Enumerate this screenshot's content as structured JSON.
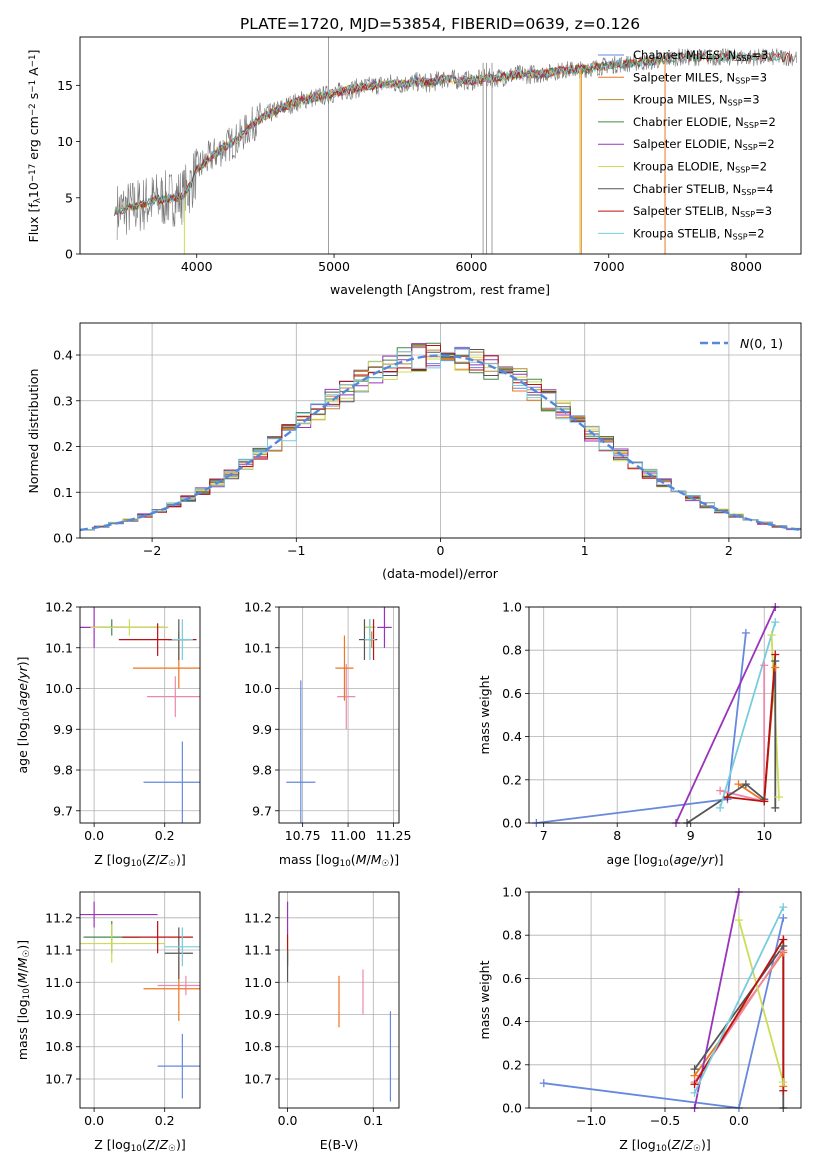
{
  "figure_title": "PLATE=1720, MJD=53854, FIBERID=0639, z=0.126",
  "colors": {
    "Chabrier MILES": "#6688dd",
    "Salpeter MILES": "#ee7722",
    "Kroupa MILES": "#bb8833",
    "Chabrier ELODIE": "#448844",
    "Salpeter ELODIE": "#9933bb",
    "Kroupa ELODIE": "#ccdd55",
    "Chabrier STELIB": "#555555",
    "Salpeter STELIB": "#bb1111",
    "Kroupa STELIB": "#77ccdd",
    "Pink": "#ee88aa",
    "gaussian": "#5588dd",
    "spectrum_gray": "#777777"
  },
  "chart_data": [
    {
      "id": "spectrum",
      "type": "line",
      "title": "PLATE=1720, MJD=53854, FIBERID=0639, z=0.126",
      "xlabel": "wavelength [Angstrom, rest frame]",
      "ylabel": "Flux [f_λ 10^-17 erg cm^-2 s^-1 A^-1]",
      "xlim": [
        3150,
        8400
      ],
      "ylim": [
        0,
        19.3
      ],
      "xticks": [
        4000,
        5000,
        6000,
        7000,
        8000
      ],
      "yticks": [
        0,
        5,
        10,
        15
      ],
      "legend_position": "top-right",
      "legend": [
        {
          "label": "Chabrier MILES, N",
          "sub": "SSP",
          "suffix": "=3"
        },
        {
          "label": "Salpeter MILES, N",
          "sub": "SSP",
          "suffix": "=3"
        },
        {
          "label": "Kroupa MILES, N",
          "sub": "SSP",
          "suffix": "=3"
        },
        {
          "label": "Chabrier ELODIE, N",
          "sub": "SSP",
          "suffix": "=2"
        },
        {
          "label": "Salpeter ELODIE, N",
          "sub": "SSP",
          "suffix": "=2"
        },
        {
          "label": "Kroupa ELODIE, N",
          "sub": "SSP",
          "suffix": "=2"
        },
        {
          "label": "Chabrier STELIB, N",
          "sub": "SSP",
          "suffix": "=4"
        },
        {
          "label": "Salpeter STELIB, N",
          "sub": "SSP",
          "suffix": "=3"
        },
        {
          "label": "Kroupa STELIB, N",
          "sub": "SSP",
          "suffix": "=2"
        }
      ],
      "continuum": [
        [
          3400,
          3.8
        ],
        [
          3550,
          4.2
        ],
        [
          3700,
          4.8
        ],
        [
          3800,
          4.9
        ],
        [
          3900,
          5.2
        ],
        [
          3950,
          6.0
        ],
        [
          4000,
          7.5
        ],
        [
          4100,
          8.6
        ],
        [
          4200,
          9.5
        ],
        [
          4300,
          10.2
        ],
        [
          4400,
          11.5
        ],
        [
          4500,
          12.3
        ],
        [
          4600,
          12.9
        ],
        [
          4700,
          13.4
        ],
        [
          4800,
          13.8
        ],
        [
          4900,
          14.0
        ],
        [
          5000,
          14.3
        ],
        [
          5100,
          14.6
        ],
        [
          5200,
          14.8
        ],
        [
          5300,
          15.0
        ],
        [
          5400,
          15.2
        ],
        [
          5500,
          15.1
        ],
        [
          5600,
          15.3
        ],
        [
          5700,
          15.2
        ],
        [
          5800,
          15.6
        ],
        [
          5900,
          15.5
        ],
        [
          6000,
          15.4
        ],
        [
          6100,
          15.6
        ],
        [
          6200,
          15.7
        ],
        [
          6300,
          15.9
        ],
        [
          6400,
          16.0
        ],
        [
          6500,
          16.0
        ],
        [
          6600,
          16.2
        ],
        [
          6700,
          16.4
        ],
        [
          6800,
          16.4
        ],
        [
          6900,
          16.6
        ],
        [
          7000,
          16.8
        ],
        [
          7100,
          16.9
        ],
        [
          7200,
          17.0
        ],
        [
          7300,
          17.1
        ],
        [
          7400,
          17.3
        ],
        [
          7500,
          17.5
        ]
      ],
      "model_end": {
        "Chabrier MILES": 7350,
        "Salpeter MILES": 7420,
        "Kroupa MILES": 7420,
        "Salpeter ELODIE": 6800,
        "Kroupa ELODIE": 6800,
        "Chabrier STELIB": 7450,
        "Kroupa STELIB": 8250
      },
      "model_start": {
        "Salpeter ELODIE": 4100,
        "Kroupa ELODIE": 4100
      }
    },
    {
      "id": "residuals",
      "type": "histogram",
      "xlabel": "(data-model)/error",
      "ylabel": "Normed distribution",
      "xlim": [
        -2.5,
        2.5
      ],
      "ylim": [
        0,
        0.47
      ],
      "xticks": [
        -2,
        -1,
        0,
        1,
        2
      ],
      "yticks": [
        0.0,
        0.1,
        0.2,
        0.3,
        0.4
      ],
      "legend_position": "top-right",
      "legend_label": "N(0,1)",
      "bin_width": 0.1
    },
    {
      "id": "age-vs-Z",
      "type": "errorbar",
      "xlabel": "Z [log10(Z/Z☉)]",
      "ylabel": "age [log10(age/yr)]",
      "xlim": [
        -0.04,
        0.3
      ],
      "ylim": [
        9.67,
        10.2
      ],
      "xticks": [
        0.0,
        0.2
      ],
      "yticks": [
        9.7,
        9.8,
        9.9,
        10.0,
        10.1,
        10.2
      ],
      "points": [
        {
          "c": "Chabrier MILES",
          "x": 0.25,
          "y": 9.77,
          "xe": 0.11,
          "ye": 0.1
        },
        {
          "c": "Pink",
          "x": 0.23,
          "y": 9.98,
          "xe": 0.08,
          "ye": 0.05
        },
        {
          "c": "Salpeter MILES",
          "x": 0.24,
          "y": 10.05,
          "xe": 0.13,
          "ye": 0.05
        },
        {
          "c": "Kroupa MILES",
          "x": 0.24,
          "y": 10.12,
          "xe": 0.02,
          "ye": 0.02
        },
        {
          "c": "Chabrier ELODIE",
          "x": 0.05,
          "y": 10.15,
          "xe": 0.04,
          "ye": 0.02
        },
        {
          "c": "Salpeter ELODIE",
          "x": 0.0,
          "y": 10.15,
          "xe": 0.2,
          "ye": 0.05
        },
        {
          "c": "Kroupa ELODIE",
          "x": 0.1,
          "y": 10.15,
          "xe": 0.11,
          "ye": 0.02
        },
        {
          "c": "Chabrier STELIB",
          "x": 0.24,
          "y": 10.12,
          "xe": 0.03,
          "ye": 0.05
        },
        {
          "c": "Salpeter STELIB",
          "x": 0.18,
          "y": 10.12,
          "xe": 0.11,
          "ye": 0.04
        },
        {
          "c": "Kroupa STELIB",
          "x": 0.25,
          "y": 10.12,
          "xe": 0.03,
          "ye": 0.05
        }
      ]
    },
    {
      "id": "age-vs-mass",
      "type": "errorbar",
      "xlabel": "mass [log10(M/M☉)]",
      "xlim": [
        10.62,
        11.28
      ],
      "ylim": [
        9.67,
        10.2
      ],
      "xticks": [
        10.75,
        11.0,
        11.25
      ],
      "yticks": [
        9.7,
        9.8,
        9.9,
        10.0,
        10.1,
        10.2
      ],
      "points": [
        {
          "c": "Chabrier MILES",
          "x": 10.74,
          "y": 9.77,
          "xe": 0.08,
          "ye": 0.25
        },
        {
          "c": "Pink",
          "x": 10.99,
          "y": 9.98,
          "xe": 0.05,
          "ye": 0.08
        },
        {
          "c": "Salpeter MILES",
          "x": 10.98,
          "y": 10.05,
          "xe": 0.05,
          "ye": 0.08
        },
        {
          "c": "Kroupa MILES",
          "x": 11.13,
          "y": 10.12,
          "xe": 0.02,
          "ye": 0.02
        },
        {
          "c": "Chabrier ELODIE",
          "x": 11.12,
          "y": 10.15,
          "xe": 0.03,
          "ye": 0.02
        },
        {
          "c": "Salpeter ELODIE",
          "x": 11.2,
          "y": 10.15,
          "xe": 0.04,
          "ye": 0.05
        },
        {
          "c": "Kroupa ELODIE",
          "x": 11.12,
          "y": 10.15,
          "xe": 0.03,
          "ye": 0.02
        },
        {
          "c": "Chabrier STELIB",
          "x": 11.09,
          "y": 10.12,
          "xe": 0.03,
          "ye": 0.05
        },
        {
          "c": "Salpeter STELIB",
          "x": 11.14,
          "y": 10.12,
          "xe": 0.02,
          "ye": 0.05
        },
        {
          "c": "Kroupa STELIB",
          "x": 11.12,
          "y": 10.12,
          "xe": 0.03,
          "ye": 0.05
        }
      ]
    },
    {
      "id": "weight-vs-age",
      "type": "line",
      "xlabel": "age [log10(age/yr)]",
      "ylabel": "mass weight",
      "xlim": [
        6.8,
        10.5
      ],
      "ylim": [
        0,
        1
      ],
      "xticks": [
        7,
        8,
        9,
        10
      ],
      "yticks": [
        0.0,
        0.2,
        0.4,
        0.6,
        0.8,
        1.0
      ],
      "series": [
        {
          "c": "Chabrier MILES",
          "pts": [
            [
              6.9,
              0.0
            ],
            [
              9.5,
              0.11
            ],
            [
              9.75,
              0.88
            ]
          ]
        },
        {
          "c": "Salpeter MILES",
          "pts": [
            [
              9.65,
              0.18
            ],
            [
              10.0,
              0.1
            ],
            [
              10.15,
              0.72
            ]
          ]
        },
        {
          "c": "Pink",
          "pts": [
            [
              9.4,
              0.15
            ],
            [
              10.0,
              0.1
            ],
            [
              10.0,
              0.73
            ]
          ]
        },
        {
          "c": "Salpeter ELODIE",
          "pts": [
            [
              8.8,
              0.0
            ],
            [
              10.15,
              1.0
            ]
          ]
        },
        {
          "c": "Kroupa ELODIE",
          "pts": [
            [
              10.1,
              0.87
            ],
            [
              10.2,
              0.12
            ]
          ]
        },
        {
          "c": "Chabrier STELIB",
          "pts": [
            [
              8.95,
              0.0
            ],
            [
              9.75,
              0.18
            ],
            [
              10.0,
              0.11
            ],
            [
              10.15,
              0.75
            ],
            [
              10.15,
              0.07
            ]
          ]
        },
        {
          "c": "Salpeter STELIB",
          "pts": [
            [
              9.5,
              0.12
            ],
            [
              10.0,
              0.1
            ],
            [
              10.15,
              0.78
            ]
          ]
        },
        {
          "c": "Kroupa STELIB",
          "pts": [
            [
              9.4,
              0.07
            ],
            [
              10.15,
              0.93
            ]
          ]
        }
      ]
    },
    {
      "id": "mass-vs-Z",
      "type": "errorbar",
      "xlabel": "Z [log10(Z/Z☉)]",
      "ylabel": "mass [log10(M/M☉)]",
      "xlim": [
        -0.04,
        0.3
      ],
      "ylim": [
        10.61,
        11.28
      ],
      "xticks": [
        0.0,
        0.2
      ],
      "yticks": [
        10.7,
        10.8,
        10.9,
        11.0,
        11.1,
        11.2
      ],
      "points": [
        {
          "c": "Chabrier MILES",
          "x": 0.25,
          "y": 10.74,
          "xe": 0.07,
          "ye": 0.1
        },
        {
          "c": "Pink",
          "x": 0.26,
          "y": 10.99,
          "xe": 0.08,
          "ye": 0.03
        },
        {
          "c": "Salpeter MILES",
          "x": 0.24,
          "y": 10.98,
          "xe": 0.1,
          "ye": 0.1
        },
        {
          "c": "Chabrier ELODIE",
          "x": 0.05,
          "y": 11.14,
          "xe": 0.08,
          "ye": 0.05
        },
        {
          "c": "Salpeter ELODIE",
          "x": 0.0,
          "y": 11.21,
          "xe": 0.18,
          "ye": 0.04
        },
        {
          "c": "Kroupa ELODIE",
          "x": 0.05,
          "y": 11.12,
          "xe": 0.15,
          "ye": 0.06
        },
        {
          "c": "Chabrier STELIB",
          "x": 0.24,
          "y": 11.09,
          "xe": 0.04,
          "ye": 0.08
        },
        {
          "c": "Salpeter STELIB",
          "x": 0.18,
          "y": 11.14,
          "xe": 0.1,
          "ye": 0.05
        },
        {
          "c": "Kroupa STELIB",
          "x": 0.25,
          "y": 11.11,
          "xe": 0.05,
          "ye": 0.06
        }
      ]
    },
    {
      "id": "mass-vs-EBV",
      "type": "errorbar",
      "xlabel": "E(B-V)",
      "xlim": [
        -0.01,
        0.13
      ],
      "ylim": [
        10.61,
        11.28
      ],
      "xticks": [
        0.0,
        0.1
      ],
      "yticks": [
        10.7,
        10.8,
        10.9,
        11.0,
        11.1,
        11.2
      ],
      "points": [
        {
          "c": "Chabrier MILES",
          "x": 0.12,
          "y": 10.77,
          "ye": 0.14
        },
        {
          "c": "Pink",
          "x": 0.088,
          "y": 10.97,
          "ye": 0.07
        },
        {
          "c": "Salpeter MILES",
          "x": 0.06,
          "y": 10.94,
          "ye": 0.08
        },
        {
          "c": "Salpeter ELODIE",
          "x": 0.0,
          "y": 11.2,
          "ye": 0.05
        },
        {
          "c": "Kroupa ELODIE",
          "x": 0.0,
          "y": 11.1,
          "ye": 0.04
        },
        {
          "c": "Salpeter STELIB",
          "x": 0.0,
          "y": 11.1,
          "ye": 0.05
        },
        {
          "c": "Chabrier STELIB",
          "x": 0.0,
          "y": 11.05,
          "ye": 0.05
        }
      ]
    },
    {
      "id": "weight-vs-Z",
      "type": "line",
      "xlabel": "Z [log10(Z/Z☉)]",
      "ylabel": "mass weight",
      "xlim": [
        -1.42,
        0.42
      ],
      "ylim": [
        0,
        1
      ],
      "xticks": [
        -1.0,
        -0.5,
        0.0
      ],
      "yticks": [
        0.0,
        0.2,
        0.4,
        0.6,
        0.8,
        1.0
      ],
      "series": [
        {
          "c": "Chabrier MILES",
          "pts": [
            [
              -1.32,
              0.115
            ],
            [
              0.0,
              0.0
            ],
            [
              0.3,
              0.88
            ]
          ]
        },
        {
          "c": "Salpeter MILES",
          "pts": [
            [
              -0.3,
              0.15
            ],
            [
              0.3,
              0.72
            ],
            [
              0.3,
              0.1
            ]
          ]
        },
        {
          "c": "Pink",
          "pts": [
            [
              -0.3,
              0.12
            ],
            [
              0.3,
              0.73
            ]
          ]
        },
        {
          "c": "Salpeter ELODIE",
          "pts": [
            [
              -0.3,
              0.0
            ],
            [
              0.0,
              1.0
            ]
          ]
        },
        {
          "c": "Kroupa ELODIE",
          "pts": [
            [
              0.0,
              0.87
            ],
            [
              0.3,
              0.12
            ]
          ]
        },
        {
          "c": "Chabrier STELIB",
          "pts": [
            [
              -0.3,
              0.18
            ],
            [
              0.3,
              0.75
            ],
            [
              0.3,
              0.0
            ]
          ]
        },
        {
          "c": "Salpeter STELIB",
          "pts": [
            [
              -0.3,
              0.11
            ],
            [
              0.3,
              0.78
            ],
            [
              0.3,
              0.08
            ]
          ]
        },
        {
          "c": "Kroupa STELIB",
          "pts": [
            [
              -0.3,
              0.07
            ],
            [
              0.3,
              0.93
            ]
          ]
        }
      ]
    }
  ]
}
